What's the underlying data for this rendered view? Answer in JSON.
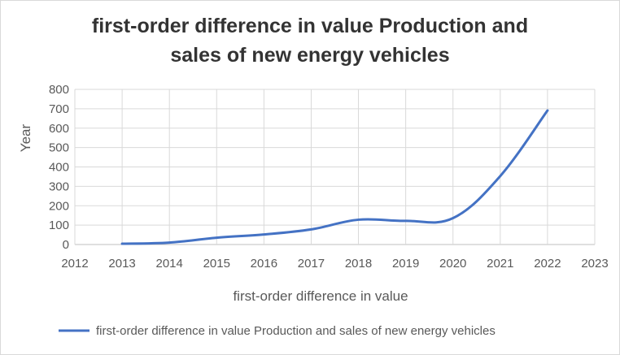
{
  "chart_data": {
    "type": "line",
    "title_line1": "first-order difference in value Production and",
    "title_line2": "sales of new energy vehicles",
    "xlabel": "first-order difference in value",
    "ylabel": "Year",
    "xlim": [
      2012,
      2023
    ],
    "ylim": [
      0,
      800
    ],
    "xticks": [
      "2012",
      "2013",
      "2014",
      "2015",
      "2016",
      "2017",
      "2018",
      "2019",
      "2020",
      "2021",
      "2022",
      "2023"
    ],
    "yticks": [
      "0",
      "100",
      "200",
      "300",
      "400",
      "500",
      "600",
      "700",
      "800"
    ],
    "grid": true,
    "legend_position": "bottom",
    "series": [
      {
        "name": "first-order difference in value Production and sales of new energy vehicles",
        "color": "#4472c4",
        "x": [
          2013,
          2014,
          2015,
          2016,
          2017,
          2018,
          2019,
          2020,
          2021,
          2022
        ],
        "y": [
          4,
          10,
          35,
          52,
          78,
          128,
          122,
          136,
          353,
          691
        ]
      }
    ]
  }
}
